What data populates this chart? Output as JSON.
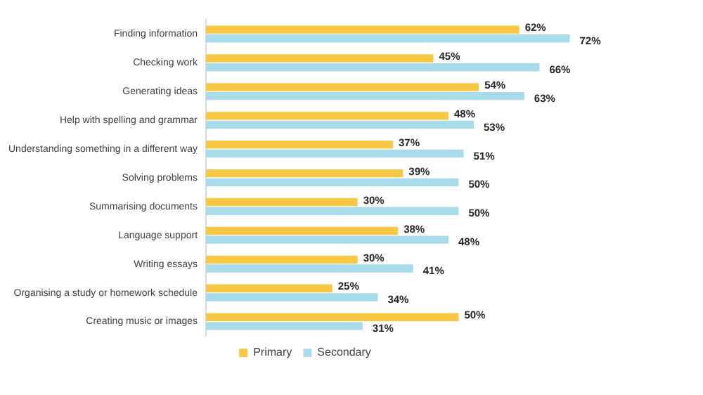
{
  "chart_data": {
    "type": "bar",
    "orientation": "horizontal",
    "categories": [
      "Finding information",
      "Checking work",
      "Generating ideas",
      "Help with spelling and grammar",
      "Understanding something in a different way",
      "Solving problems",
      "Summarising documents",
      "Language support",
      "Writing essays",
      "Organising a study or homework schedule",
      "Creating music or images"
    ],
    "series": [
      {
        "name": "Primary",
        "color": "#f7c843",
        "values": [
          62,
          45,
          54,
          48,
          37,
          39,
          30,
          38,
          30,
          25,
          50
        ],
        "value_labels": [
          "62%",
          "45%",
          "54%",
          "48%",
          "37%",
          "39%",
          "30%",
          "38%",
          "30%",
          "25%",
          "50%"
        ]
      },
      {
        "name": "Secondary",
        "color": "#a8dcea",
        "values": [
          72,
          66,
          63,
          53,
          51,
          50,
          50,
          48,
          41,
          34,
          31
        ],
        "value_labels": [
          "72%",
          "66%",
          "63%",
          "53%",
          "51%",
          "50%",
          "50%",
          "48%",
          "41%",
          "34%",
          "31%"
        ]
      }
    ],
    "tick_labels": "y",
    "grid": false,
    "legend": "bottom"
  }
}
